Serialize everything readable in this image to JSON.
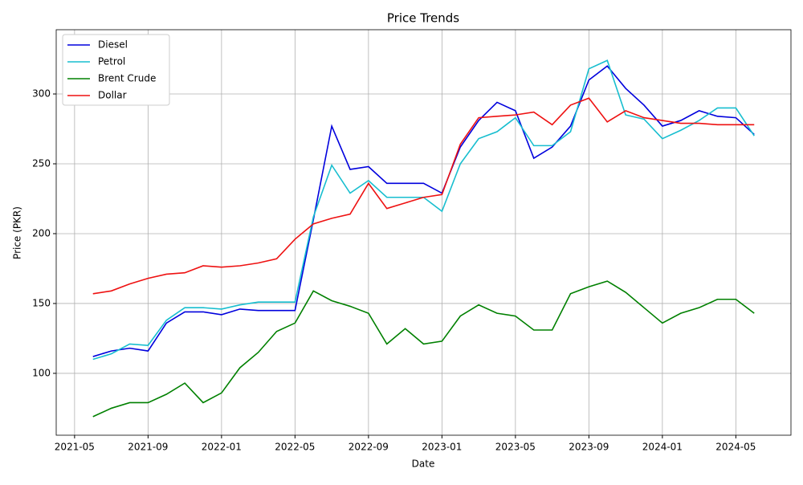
{
  "chart_data": {
    "type": "line",
    "title": "Price Trends",
    "x_label": "Date",
    "y_label": "Price (PKR)",
    "x": [
      "2021-06",
      "2021-07",
      "2021-08",
      "2021-09",
      "2021-10",
      "2021-11",
      "2021-12",
      "2022-01",
      "2022-02",
      "2022-03",
      "2022-04",
      "2022-05",
      "2022-06",
      "2022-07",
      "2022-08",
      "2022-09",
      "2022-10",
      "2022-11",
      "2022-12",
      "2023-01",
      "2023-02",
      "2023-03",
      "2023-04",
      "2023-05",
      "2023-06",
      "2023-07",
      "2023-08",
      "2023-09",
      "2023-10",
      "2023-11",
      "2023-12",
      "2024-01",
      "2024-02",
      "2024-03",
      "2024-04",
      "2024-05",
      "2024-06"
    ],
    "series": [
      {
        "name": "Diesel",
        "color": "#0000dd",
        "values": [
          112,
          116,
          118,
          116,
          136,
          144,
          144,
          142,
          146,
          145,
          145,
          145,
          210,
          277,
          246,
          248,
          236,
          236,
          236,
          229,
          262,
          281,
          294,
          288,
          254,
          262,
          277,
          310,
          320,
          304,
          292,
          277,
          281,
          288,
          284,
          283,
          271
        ]
      },
      {
        "name": "Petrol",
        "color": "#17becf",
        "values": [
          110,
          114,
          121,
          120,
          138,
          147,
          147,
          146,
          149,
          151,
          151,
          151,
          212,
          249,
          229,
          238,
          226,
          226,
          226,
          216,
          250,
          268,
          273,
          283,
          263,
          263,
          273,
          318,
          324,
          285,
          282,
          268,
          274,
          281,
          290,
          290,
          270
        ]
      },
      {
        "name": "Brent Crude",
        "color": "#008000",
        "values": [
          69,
          75,
          79,
          79,
          85,
          93,
          79,
          86,
          104,
          115,
          130,
          136,
          159,
          152,
          148,
          143,
          121,
          132,
          121,
          123,
          141,
          149,
          143,
          141,
          131,
          131,
          157,
          162,
          166,
          158,
          147,
          136,
          143,
          147,
          153,
          153,
          143
        ]
      },
      {
        "name": "Dollar",
        "color": "#ee1111",
        "values": [
          157,
          159,
          164,
          168,
          171,
          172,
          177,
          176,
          177,
          179,
          182,
          196,
          207,
          211,
          214,
          236,
          218,
          222,
          226,
          228,
          264,
          283,
          284,
          285,
          287,
          278,
          292,
          297,
          280,
          288,
          283,
          281,
          279,
          279,
          278,
          278,
          278
        ]
      }
    ],
    "xlim": [
      "2021-04",
      "2024-08"
    ],
    "xticks": [
      "2021-05",
      "2021-09",
      "2022-01",
      "2022-05",
      "2022-09",
      "2023-01",
      "2023-05",
      "2023-09",
      "2024-01",
      "2024-05"
    ],
    "ylim": [
      55.7,
      346
    ],
    "yticks": [
      100,
      150,
      200,
      250,
      300
    ],
    "grid": true,
    "legend": "upper left"
  }
}
